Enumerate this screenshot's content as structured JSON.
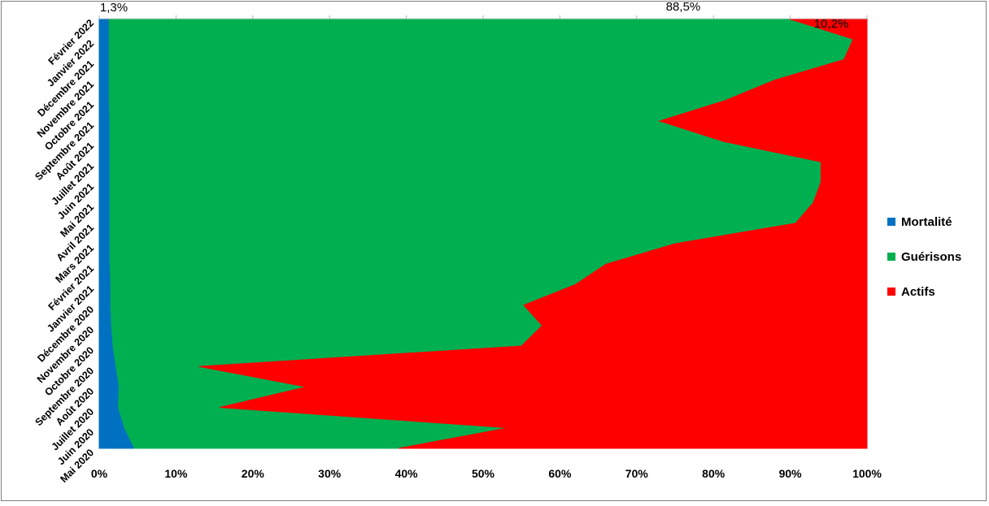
{
  "chart_data": {
    "type": "area",
    "orientation": "horizontal-stacked-100",
    "categories": [
      "Mai 2020",
      "Juin 2020",
      "Juillet 2020",
      "Août 2020",
      "Septembre 2020",
      "Octobre 2020",
      "Novembre 2020",
      "Décembre 2020",
      "Janvier 2021",
      "Février 2021",
      "Mars 2021",
      "Avril 2021",
      "Mai 2021",
      "Juin 2021",
      "Juillet 2021",
      "Août 2021",
      "Septembre 2021",
      "Octobre 2021",
      "Novembre 2021",
      "Décembre 2021",
      "Janvier 2022",
      "Février 2022"
    ],
    "x_ticks": [
      "0%",
      "10%",
      "20%",
      "30%",
      "40%",
      "50%",
      "60%",
      "70%",
      "80%",
      "90%",
      "100%"
    ],
    "xlim": [
      0,
      100
    ],
    "legend_position": "right",
    "series": [
      {
        "name": "Mortalité",
        "color": "#0070c0",
        "values": [
          4.6,
          3.3,
          2.5,
          2.6,
          2.2,
          1.8,
          1.6,
          1.5,
          1.5,
          1.4,
          1.4,
          1.4,
          1.4,
          1.4,
          1.4,
          1.4,
          1.4,
          1.3,
          1.3,
          1.3,
          1.3,
          1.3
        ]
      },
      {
        "name": "Guérisons",
        "color": "#00b050",
        "values": [
          34.4,
          50.0,
          13.2,
          24.4,
          10.8,
          53.2,
          56.1,
          53.8,
          60.5,
          64.6,
          73.6,
          89.3,
          91.6,
          92.6,
          92.6,
          79.9,
          71.6,
          80.2,
          86.7,
          95.7,
          96.9,
          88.5
        ]
      },
      {
        "name": "Actifs",
        "color": "#ff0000",
        "values": [
          61.0,
          46.7,
          84.3,
          73.0,
          87.0,
          45.0,
          42.3,
          44.7,
          38.0,
          34.0,
          25.0,
          9.3,
          7.0,
          6.0,
          6.0,
          18.7,
          27.0,
          18.5,
          12.0,
          3.0,
          1.8,
          10.2
        ]
      }
    ],
    "annotations": [
      "1,3%",
      "88,5%",
      "10,2%"
    ]
  }
}
